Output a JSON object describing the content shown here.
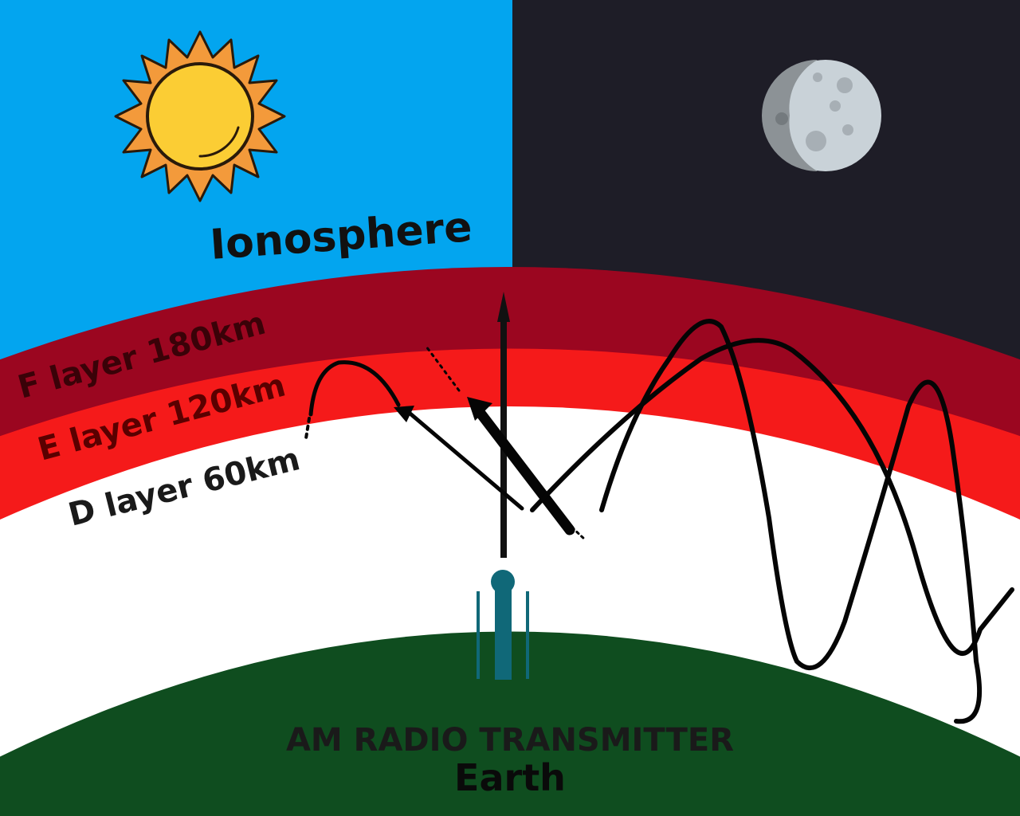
{
  "title": "Ionosphere",
  "layers": [
    {
      "key": "F",
      "label": "F layer 180km",
      "color": "#9b0620",
      "text_color": "#3a0208"
    },
    {
      "key": "E",
      "label": "E layer 120km",
      "color": "#f51a1a",
      "text_color": "#5a0000"
    },
    {
      "key": "D",
      "label": "D layer 60km",
      "color": "#ffffff",
      "text_color": "#1a1a1a"
    }
  ],
  "ground": {
    "label": "Earth",
    "color": "#0f4d1f"
  },
  "transmitter": {
    "label": "AM RADIO TRANSMITTER",
    "color": "#106878"
  },
  "sky": {
    "day_color": "#03a5ef",
    "night_color": "#1e1d27"
  },
  "icons": {
    "day": "sun-icon",
    "night": "moon-icon"
  }
}
